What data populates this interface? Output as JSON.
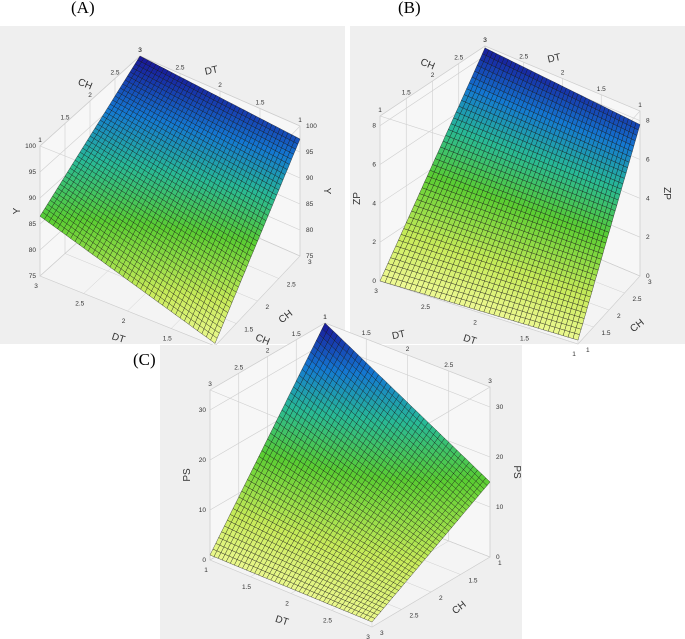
{
  "chart_data": [
    {
      "type": "surface",
      "panel_label": "(A)",
      "x_axis": {
        "label": "DT",
        "ticks": [
          "3",
          "2.5",
          "2",
          "1.5",
          "1"
        ],
        "range": [
          1,
          3
        ]
      },
      "y_axis": {
        "label": "CH",
        "ticks": [
          "3",
          "2.5",
          "2",
          "1.5",
          "1"
        ],
        "range": [
          1,
          3
        ]
      },
      "z_axis": {
        "label": "Y",
        "ticks": [
          "75",
          "80",
          "85",
          "90",
          "95",
          "100"
        ],
        "range": [
          75,
          100
        ]
      },
      "top_x_ticks": [
        "3",
        "2.5",
        "2",
        "1.5",
        "1"
      ],
      "top_y_ticks": [
        "1",
        "1.5",
        "2",
        "2.5",
        "3"
      ],
      "surface_corners": {
        "DT3_CH1": 86.5,
        "DT3_CH3": 100,
        "DT1_CH1": 75.5,
        "DT1_CH3": 97.5
      },
      "grid": true
    },
    {
      "type": "surface",
      "panel_label": "(B)",
      "x_axis": {
        "label": "DT",
        "ticks": [
          "3",
          "2.5",
          "2",
          "1.5",
          "1"
        ],
        "range": [
          1,
          3
        ]
      },
      "y_axis": {
        "label": "CH",
        "ticks": [
          "3",
          "2.5",
          "2",
          "1.5",
          "1"
        ],
        "range": [
          1,
          3
        ]
      },
      "z_axis": {
        "label": "ZP",
        "ticks": [
          "0",
          "2",
          "4",
          "6",
          "8"
        ],
        "range": [
          0,
          8.5
        ]
      },
      "top_x_ticks": [
        "3",
        "2.5",
        "2",
        "1.5",
        "1"
      ],
      "top_y_ticks": [
        "1",
        "1.5",
        "2",
        "2.5",
        "3"
      ],
      "surface_corners": {
        "DT3_CH1": 0,
        "DT3_CH3": 8.4,
        "DT1_CH1": 0.1,
        "DT1_CH3": 7.8
      },
      "grid": true
    },
    {
      "type": "surface",
      "panel_label": "(C)",
      "x_axis": {
        "label": "DT",
        "ticks": [
          "1",
          "1.5",
          "2",
          "2.5",
          "3"
        ],
        "range": [
          1,
          3
        ]
      },
      "y_axis": {
        "label": "CH",
        "ticks": [
          "1",
          "1.5",
          "2",
          "2.5",
          "3"
        ],
        "range": [
          1,
          3
        ]
      },
      "z_axis": {
        "label": "PS",
        "ticks": [
          "0",
          "10",
          "20",
          "30"
        ],
        "range": [
          0,
          34
        ]
      },
      "top_x_ticks": [
        "1",
        "1.5",
        "2",
        "2.5",
        "3"
      ],
      "top_y_ticks": [
        "3",
        "2.5",
        "2",
        "1.5",
        "1"
      ],
      "surface_corners": {
        "DT1_CH1": 1,
        "DT1_CH3": 34,
        "DT3_CH1": 1,
        "DT3_CH3": 15
      },
      "grid": true
    }
  ]
}
